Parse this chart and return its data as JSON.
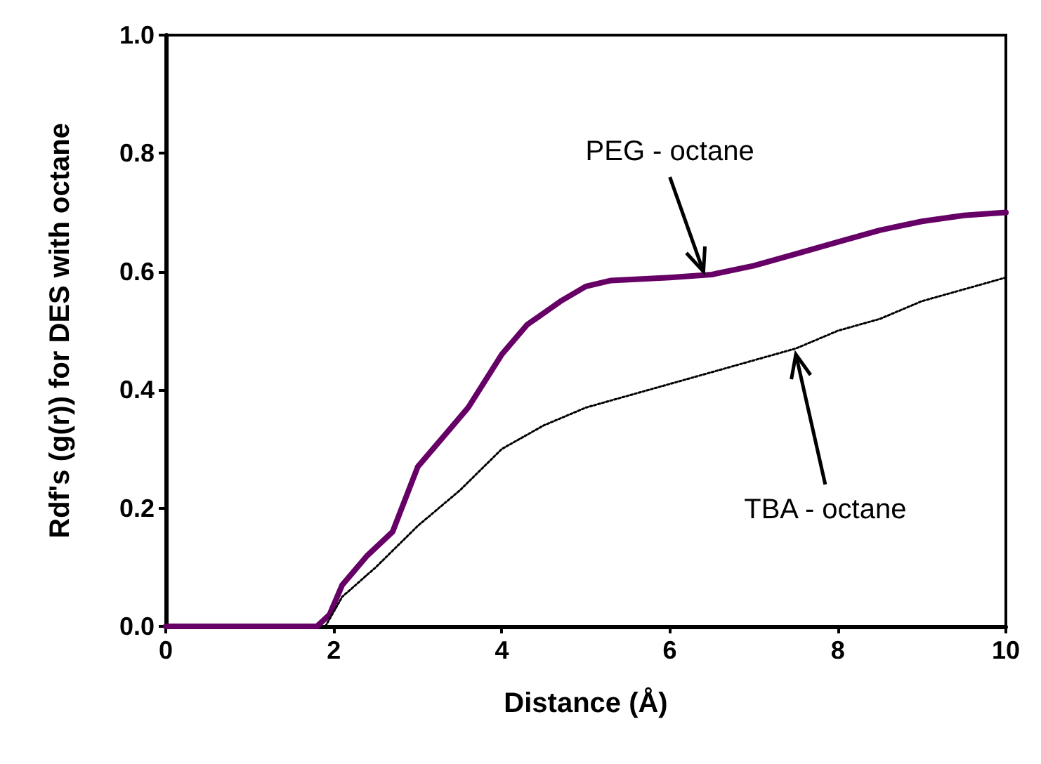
{
  "chart_data": {
    "type": "line",
    "xlabel": "Distance (Å)",
    "ylabel": "Rdf's (g(r)) for DES with octane",
    "xlim": [
      0,
      10
    ],
    "xticks": [
      0,
      2,
      4,
      6,
      8,
      10
    ],
    "ylim": [
      0,
      1
    ],
    "yticks": [
      {
        "value": 0,
        "label": "0.0"
      },
      {
        "value": 0.2,
        "label": "0.2"
      },
      {
        "value": 0.4,
        "label": "0.4"
      },
      {
        "value": 0.6,
        "label": "0.6"
      },
      {
        "value": 0.8,
        "label": "0.8"
      },
      {
        "value": 1,
        "label": "1.0"
      }
    ],
    "grid": false,
    "marker": "none",
    "series": [
      {
        "color": "#660066",
        "line_style": "solid",
        "x": [
          0,
          1.8,
          1.95,
          2.1,
          2.4,
          2.7,
          3.0,
          3.3,
          3.6,
          4.0,
          4.3,
          4.7,
          5.0,
          5.3,
          6.0,
          6.5,
          7.0,
          7.5,
          8.0,
          8.5,
          9.0,
          9.5,
          10
        ],
        "values": [
          0,
          0,
          0.02,
          0.07,
          0.12,
          0.16,
          0.27,
          0.32,
          0.37,
          0.46,
          0.51,
          0.55,
          0.575,
          0.585,
          0.59,
          0.595,
          0.61,
          0.63,
          0.65,
          0.67,
          0.685,
          0.695,
          0.7
        ]
      },
      {
        "color": "#000000",
        "line_style": "dotted",
        "x": [
          1.9,
          2.1,
          2.5,
          3.0,
          3.5,
          4.0,
          4.5,
          5.0,
          5.5,
          6.0,
          6.5,
          7.0,
          7.5,
          8.0,
          8.5,
          9.0,
          9.5,
          10
        ],
        "values": [
          0,
          0.05,
          0.1,
          0.17,
          0.23,
          0.3,
          0.34,
          0.37,
          0.39,
          0.41,
          0.43,
          0.45,
          0.47,
          0.5,
          0.52,
          0.55,
          0.57,
          0.59
        ]
      }
    ],
    "annotations": [
      {
        "text": "PEG - octane",
        "x": 6.4,
        "y": 0.6
      },
      {
        "text": "TBA - octane",
        "x": 7.5,
        "y": 0.46
      }
    ]
  }
}
